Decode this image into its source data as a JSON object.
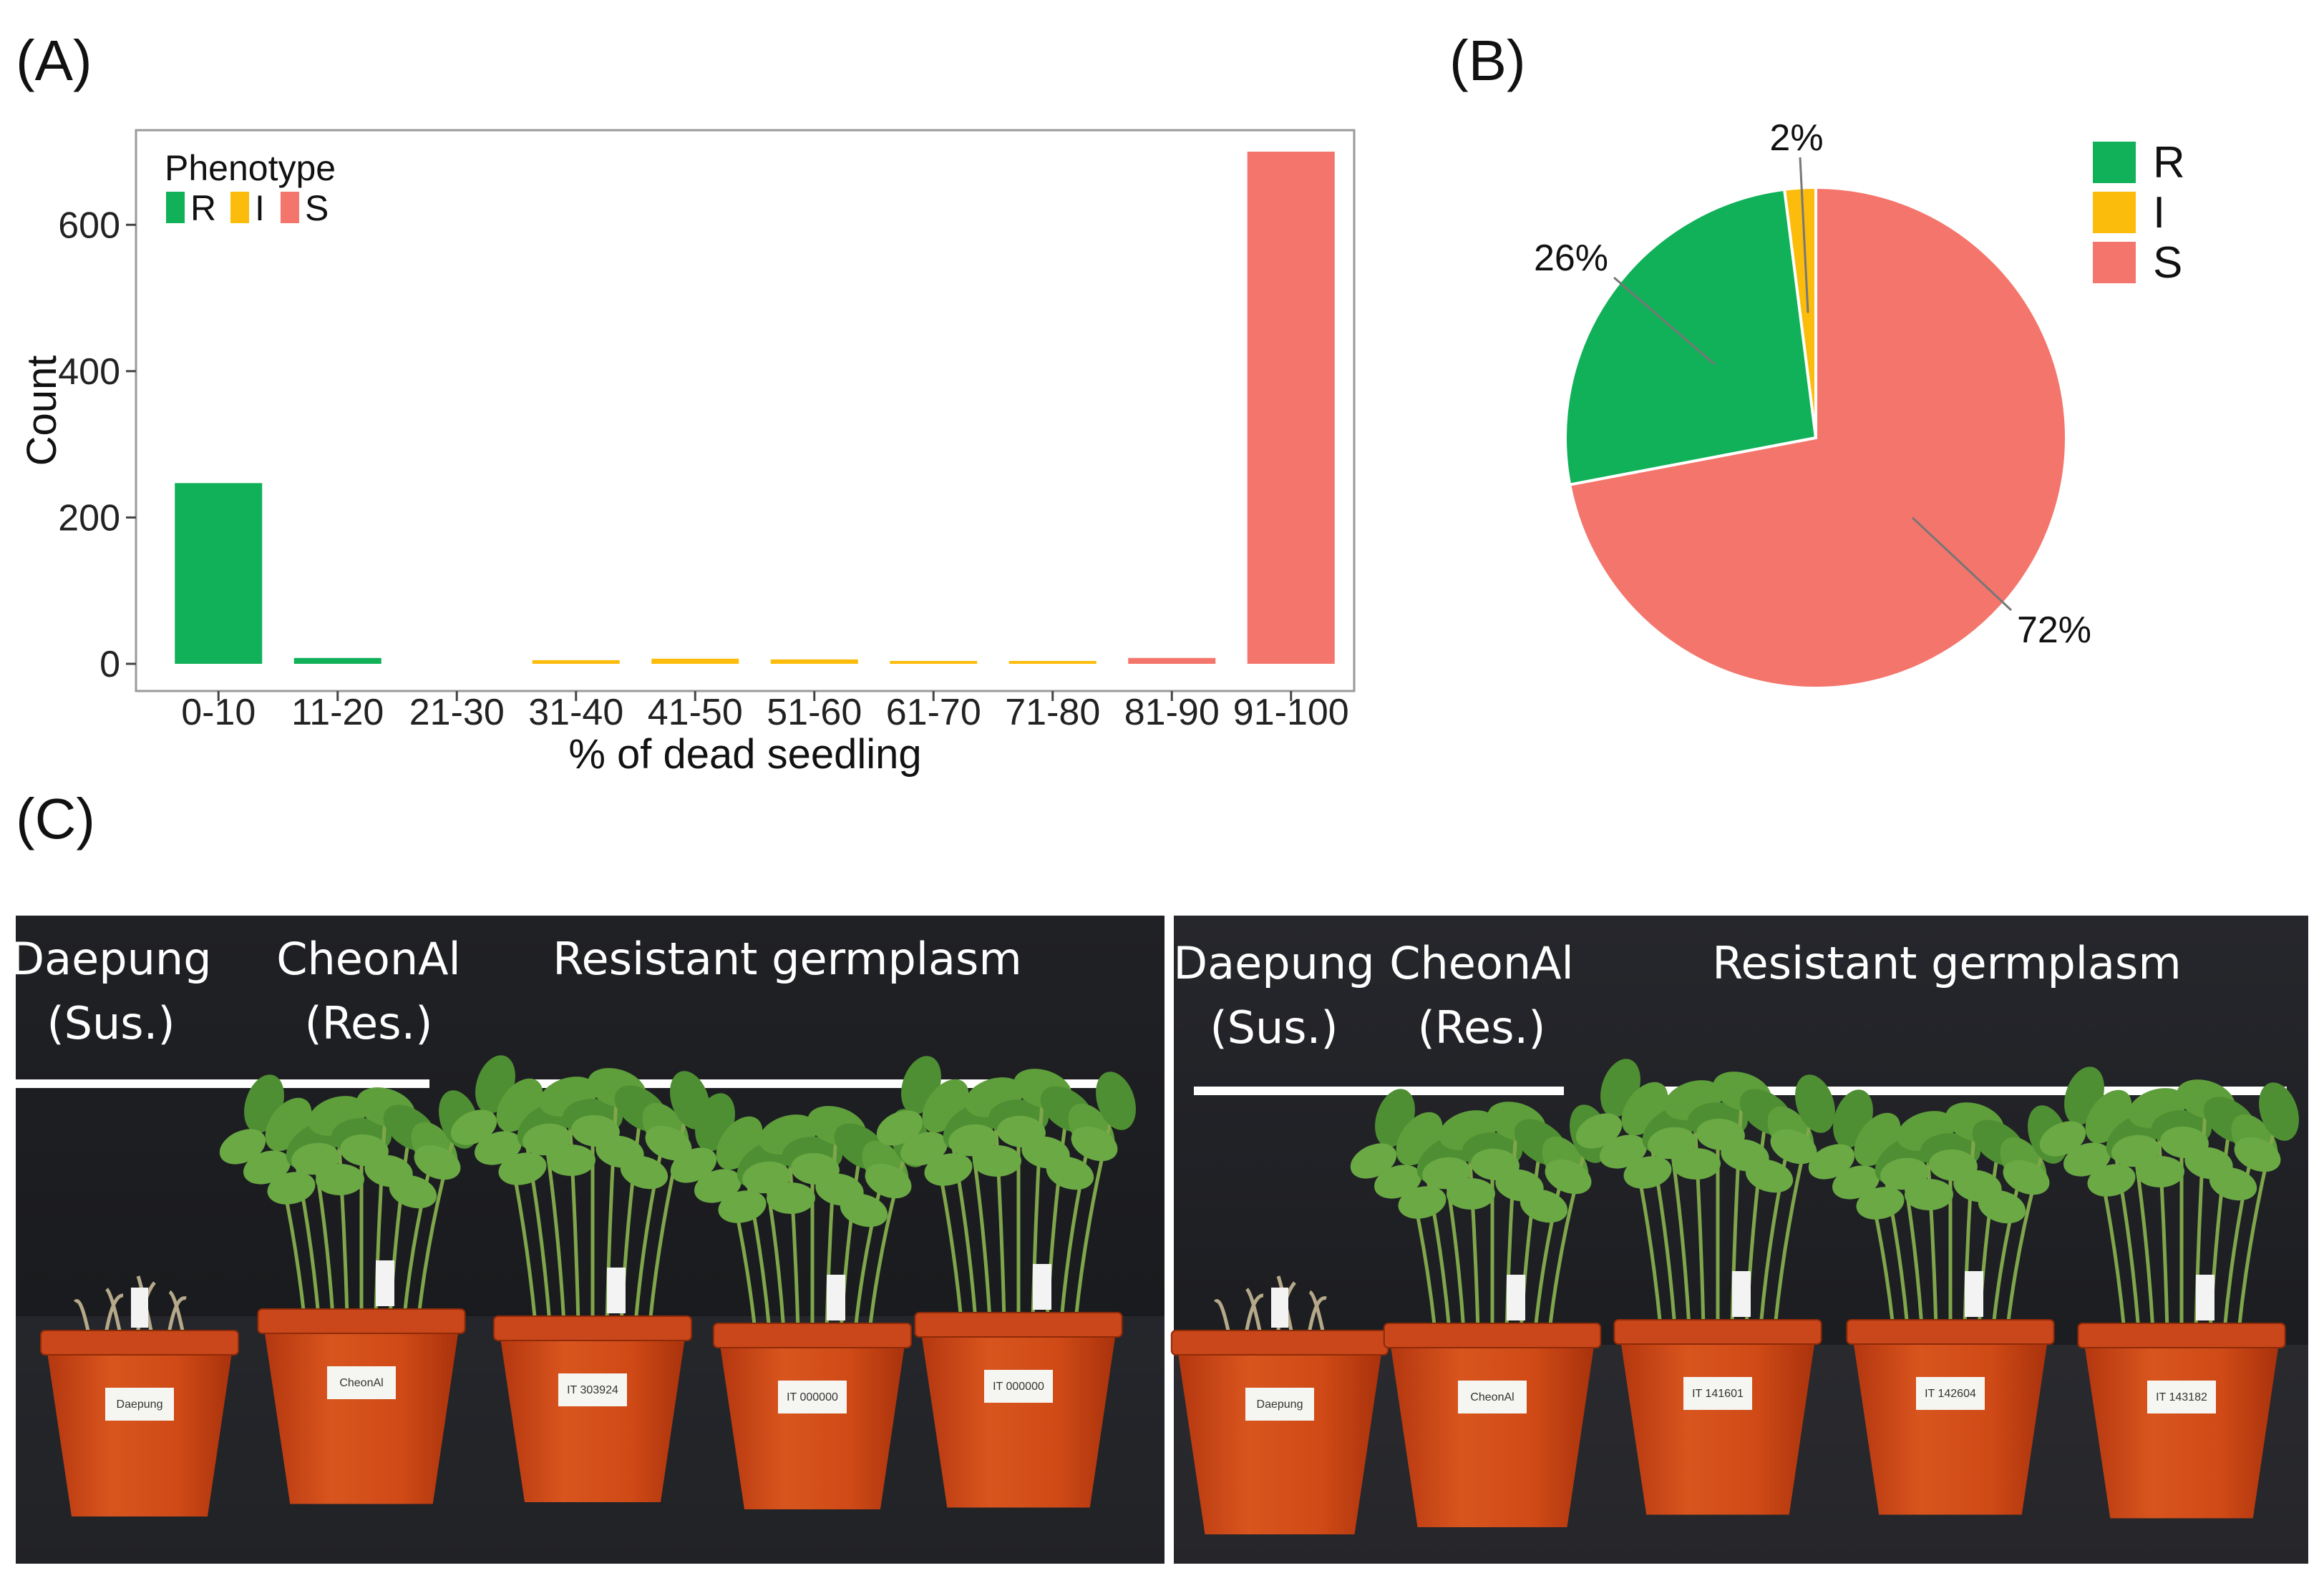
{
  "panels": {
    "a": "(A)",
    "b": "(B)",
    "c": "(C)"
  },
  "colors": {
    "R": "#10b158",
    "I": "#fcbc0b",
    "S": "#f4756b"
  },
  "chart_data": [
    {
      "type": "bar",
      "panel": "(A)",
      "title": "",
      "xlabel": "% of dead seedling",
      "ylabel": "Count",
      "ylim": [
        0,
        735
      ],
      "yticks": [
        0,
        200,
        400,
        600
      ],
      "grid": false,
      "legend": {
        "title": "Phenotype",
        "position": "top-left",
        "entries": [
          "R",
          "I",
          "S"
        ]
      },
      "categories": [
        "0-10",
        "11-20",
        "21-30",
        "31-40",
        "41-50",
        "51-60",
        "61-70",
        "71-80",
        "81-90",
        "91-100"
      ],
      "values": [
        247,
        8,
        0,
        5,
        7,
        6,
        3,
        3,
        8,
        700
      ],
      "phenotype": [
        "R",
        "R",
        "I",
        "I",
        "I",
        "I",
        "I",
        "I",
        "S",
        "S"
      ]
    },
    {
      "type": "pie",
      "panel": "(B)",
      "title": "",
      "legend": {
        "position": "top-right",
        "entries": [
          "R",
          "I",
          "S"
        ]
      },
      "slices": [
        {
          "label": "R",
          "value": 26,
          "text": "26%"
        },
        {
          "label": "I",
          "value": 2,
          "text": "2%"
        },
        {
          "label": "S",
          "value": 72,
          "text": "72%"
        }
      ]
    }
  ],
  "photos": [
    {
      "labels": [
        {
          "name": "daepung",
          "lines": [
            "Daepung",
            "(Sus.)"
          ]
        },
        {
          "name": "cheonal",
          "lines": [
            "CheonAl",
            "(Res.)"
          ]
        },
        {
          "name": "resistant",
          "lines": [
            "Resistant germplasm"
          ]
        }
      ],
      "pots": [
        "Daepung",
        "CheonAl",
        "IT 303924",
        "IT 000000",
        "IT 000000"
      ]
    },
    {
      "labels": [
        {
          "name": "daepung",
          "lines": [
            "Daepung",
            "(Sus.)"
          ]
        },
        {
          "name": "cheonal",
          "lines": [
            "CheonAl",
            "(Res.)"
          ]
        },
        {
          "name": "resistant",
          "lines": [
            "Resistant germplasm"
          ]
        }
      ],
      "pots": [
        "Daepung",
        "CheonAl",
        "IT 141601",
        "IT 142604",
        "IT 143182"
      ]
    }
  ]
}
